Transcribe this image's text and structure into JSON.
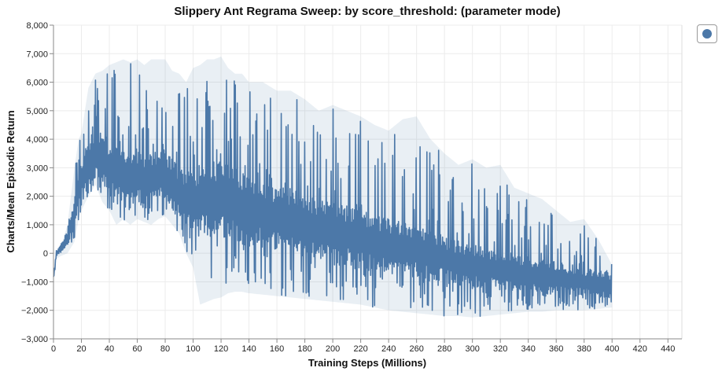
{
  "chart_data": {
    "type": "line",
    "title": "Slippery Ant Regrama Sweep: by score_threshold: (parameter mode)",
    "xlabel": "Training Steps (Millions)",
    "ylabel": "Charts/Mean Episodic Return",
    "xlim": [
      0,
      450
    ],
    "ylim": [
      -3000,
      8000
    ],
    "x_ticks": [
      0,
      20,
      40,
      60,
      80,
      100,
      120,
      140,
      160,
      180,
      200,
      220,
      240,
      260,
      280,
      300,
      320,
      340,
      360,
      380,
      400,
      420,
      440
    ],
    "y_ticks": [
      -3000,
      -2000,
      -1000,
      0,
      1000,
      2000,
      3000,
      4000,
      5000,
      6000,
      7000,
      8000
    ],
    "y_tick_labels": [
      "−3,000",
      "−2,000",
      "−1,000",
      "0",
      "1,000",
      "2,000",
      "3,000",
      "4,000",
      "5,000",
      "6,000",
      "7,000",
      "8,000"
    ],
    "grid": true,
    "legend_position": "top-right",
    "series": [
      {
        "color": "#4c78a8",
        "envelope_x": [
          0,
          2,
          5,
          10,
          15,
          18,
          20,
          25,
          30,
          35,
          40,
          45,
          50,
          55,
          60,
          65,
          70,
          75,
          80,
          85,
          90,
          95,
          100,
          105,
          110,
          115,
          120,
          125,
          130,
          135,
          140,
          150,
          160,
          170,
          180,
          190,
          200,
          210,
          220,
          230,
          240,
          250,
          260,
          270,
          280,
          290,
          300,
          310,
          320,
          330,
          340,
          350,
          360,
          370,
          380,
          390,
          400
        ],
        "upper": [
          -900,
          0,
          200,
          1000,
          3000,
          4000,
          4200,
          5800,
          6300,
          6400,
          6600,
          6700,
          6800,
          6700,
          6800,
          6600,
          6800,
          6800,
          6800,
          6400,
          6300,
          6000,
          6500,
          6600,
          6800,
          6800,
          6900,
          6500,
          6300,
          6300,
          6000,
          6000,
          5700,
          5700,
          5400,
          5000,
          5200,
          5000,
          4800,
          4500,
          4300,
          4700,
          4800,
          4000,
          3500,
          3100,
          3300,
          3000,
          3100,
          2300,
          2100,
          1900,
          1500,
          1100,
          1200,
          500,
          -400
        ],
        "lower": [
          -1000,
          -200,
          -100,
          0,
          400,
          1200,
          1500,
          2000,
          2400,
          1800,
          1500,
          1000,
          1200,
          1000,
          1200,
          1100,
          1000,
          1200,
          1300,
          1000,
          700,
          0,
          -500,
          -1800,
          -1700,
          -1600,
          -1550,
          -1400,
          -1350,
          -1350,
          -1400,
          -1450,
          -1500,
          -1550,
          -1600,
          -1650,
          -1700,
          -1750,
          -1800,
          -1900,
          -2000,
          -2050,
          -2100,
          -2150,
          -2200,
          -2200,
          -2250,
          -2200,
          -2150,
          -2100,
          -2050,
          -2050,
          -2000,
          -2000,
          -2000,
          -1950,
          -1900
        ],
        "base_low": [
          -1000,
          -100,
          0,
          300,
          800,
          1500,
          1800,
          2200,
          2500,
          2300,
          2000,
          1800,
          1800,
          1600,
          1800,
          1700,
          1600,
          1800,
          1800,
          1500,
          1200,
          800,
          600,
          600,
          600,
          500,
          600,
          500,
          400,
          300,
          300,
          200,
          100,
          0,
          -100,
          -200,
          -300,
          -400,
          -500,
          -600,
          -700,
          -800,
          -800,
          -900,
          -1000,
          -1100,
          -1200,
          -1200,
          -1300,
          -1300,
          -1400,
          -1400,
          -1500,
          -1500,
          -1500,
          -1500,
          -1600
        ],
        "base_high": [
          -800,
          100,
          300,
          800,
          2000,
          3000,
          3300,
          4000,
          4300,
          4200,
          4000,
          3800,
          3800,
          3600,
          3700,
          3500,
          3500,
          3600,
          3600,
          3300,
          3000,
          2800,
          3000,
          3200,
          3300,
          3300,
          3400,
          3200,
          3000,
          2900,
          2800,
          2600,
          2400,
          2300,
          2100,
          1900,
          1800,
          1700,
          1600,
          1400,
          1200,
          1100,
          1000,
          800,
          600,
          400,
          300,
          200,
          100,
          0,
          -100,
          -200,
          -300,
          -400,
          -500,
          -600,
          -700
        ]
      }
    ]
  }
}
